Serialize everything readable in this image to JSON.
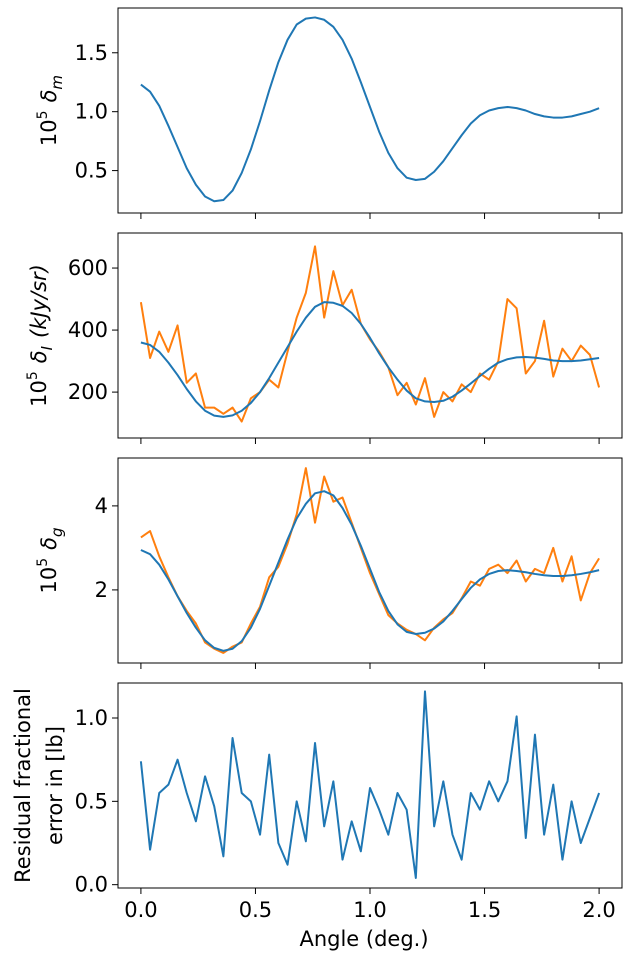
{
  "chart_data": [
    {
      "type": "line",
      "ylabel": [
        "10",
        "5",
        "δ",
        "m"
      ],
      "x": [
        0,
        0.04,
        0.08,
        0.12,
        0.16,
        0.2,
        0.24,
        0.28,
        0.32,
        0.36,
        0.4,
        0.44,
        0.48,
        0.52,
        0.56,
        0.6,
        0.64,
        0.68,
        0.72,
        0.76,
        0.8,
        0.84,
        0.88,
        0.92,
        0.96,
        1.0,
        1.04,
        1.08,
        1.12,
        1.16,
        1.2,
        1.24,
        1.28,
        1.32,
        1.36,
        1.4,
        1.44,
        1.48,
        1.52,
        1.56,
        1.6,
        1.64,
        1.68,
        1.72,
        1.76,
        1.8,
        1.84,
        1.88,
        1.92,
        1.96,
        2.0
      ],
      "series": [
        {
          "color": "#1f77b4",
          "values": [
            1.23,
            1.17,
            1.05,
            0.88,
            0.7,
            0.52,
            0.38,
            0.28,
            0.24,
            0.25,
            0.33,
            0.48,
            0.68,
            0.92,
            1.18,
            1.42,
            1.61,
            1.74,
            1.79,
            1.8,
            1.78,
            1.72,
            1.61,
            1.45,
            1.25,
            1.04,
            0.83,
            0.65,
            0.52,
            0.44,
            0.42,
            0.43,
            0.49,
            0.58,
            0.69,
            0.8,
            0.9,
            0.97,
            1.01,
            1.03,
            1.04,
            1.03,
            1.01,
            0.98,
            0.96,
            0.95,
            0.95,
            0.96,
            0.98,
            1.0,
            1.03
          ]
        }
      ],
      "xlim": [
        -0.1,
        2.1
      ],
      "xticks": [
        0,
        0.5,
        1,
        1.5,
        2
      ],
      "ylim": [
        0.14,
        1.88
      ],
      "yticks": [
        0.5,
        {
          "value": 1,
          "label": "1.0"
        },
        1.5
      ]
    },
    {
      "type": "line",
      "ylabel": [
        "10",
        "5",
        "δ",
        "I",
        "(kJy/sr)"
      ],
      "x": [
        0,
        0.04,
        0.08,
        0.12,
        0.16,
        0.2,
        0.24,
        0.28,
        0.32,
        0.36,
        0.4,
        0.44,
        0.48,
        0.52,
        0.56,
        0.6,
        0.64,
        0.68,
        0.72,
        0.76,
        0.8,
        0.84,
        0.88,
        0.92,
        0.96,
        1.0,
        1.04,
        1.08,
        1.12,
        1.16,
        1.2,
        1.24,
        1.28,
        1.32,
        1.36,
        1.4,
        1.44,
        1.48,
        1.52,
        1.56,
        1.6,
        1.64,
        1.68,
        1.72,
        1.76,
        1.8,
        1.84,
        1.88,
        1.92,
        1.96,
        2.0
      ],
      "series": [
        {
          "color": "#ff7f0e",
          "values": [
            490,
            310,
            395,
            330,
            415,
            230,
            260,
            150,
            150,
            130,
            150,
            105,
            180,
            200,
            240,
            215,
            330,
            440,
            520,
            670,
            440,
            590,
            480,
            530,
            420,
            370,
            330,
            280,
            190,
            230,
            160,
            245,
            120,
            200,
            170,
            225,
            200,
            260,
            240,
            300,
            500,
            470,
            260,
            300,
            430,
            250,
            340,
            300,
            350,
            320,
            215
          ]
        },
        {
          "color": "#1f77b4",
          "values": [
            360,
            352,
            330,
            295,
            255,
            210,
            170,
            140,
            124,
            120,
            125,
            140,
            165,
            200,
            245,
            295,
            345,
            395,
            440,
            475,
            490,
            488,
            478,
            455,
            420,
            375,
            325,
            280,
            240,
            205,
            180,
            170,
            168,
            172,
            185,
            205,
            228,
            252,
            275,
            295,
            306,
            312,
            313,
            311,
            307,
            302,
            300,
            300,
            302,
            306,
            310
          ]
        }
      ],
      "xlim": [
        -0.1,
        2.1
      ],
      "xticks": [
        0,
        0.5,
        1,
        1.5,
        2
      ],
      "ylim": [
        52,
        713
      ],
      "yticks": [
        200,
        400,
        600
      ]
    },
    {
      "type": "line",
      "ylabel": [
        "10",
        "5",
        "δ",
        "g"
      ],
      "x": [
        0,
        0.04,
        0.08,
        0.12,
        0.16,
        0.2,
        0.24,
        0.28,
        0.32,
        0.36,
        0.4,
        0.44,
        0.48,
        0.52,
        0.56,
        0.6,
        0.64,
        0.68,
        0.72,
        0.76,
        0.8,
        0.84,
        0.88,
        0.92,
        0.96,
        1.0,
        1.04,
        1.08,
        1.12,
        1.16,
        1.2,
        1.24,
        1.28,
        1.32,
        1.36,
        1.4,
        1.44,
        1.48,
        1.52,
        1.56,
        1.6,
        1.64,
        1.68,
        1.72,
        1.76,
        1.8,
        1.84,
        1.88,
        1.92,
        1.96,
        2.0
      ],
      "series": [
        {
          "color": "#ff7f0e",
          "values": [
            3.25,
            3.4,
            2.8,
            2.3,
            1.85,
            1.5,
            1.2,
            0.75,
            0.6,
            0.5,
            0.65,
            0.75,
            1.2,
            1.6,
            2.3,
            2.55,
            3.1,
            3.8,
            4.9,
            3.6,
            4.7,
            4.1,
            4.2,
            3.6,
            3.0,
            2.4,
            1.9,
            1.4,
            1.2,
            1.05,
            0.95,
            0.8,
            1.1,
            1.3,
            1.45,
            1.8,
            2.2,
            2.1,
            2.5,
            2.6,
            2.4,
            2.7,
            2.2,
            2.5,
            2.4,
            3.0,
            2.2,
            2.8,
            1.75,
            2.4,
            2.75
          ]
        },
        {
          "color": "#1f77b4",
          "values": [
            2.95,
            2.85,
            2.6,
            2.25,
            1.85,
            1.45,
            1.1,
            0.8,
            0.62,
            0.55,
            0.6,
            0.78,
            1.1,
            1.55,
            2.1,
            2.65,
            3.2,
            3.7,
            4.05,
            4.3,
            4.35,
            4.25,
            3.95,
            3.55,
            3.05,
            2.5,
            1.95,
            1.5,
            1.18,
            1.0,
            0.95,
            0.98,
            1.08,
            1.25,
            1.5,
            1.78,
            2.05,
            2.25,
            2.38,
            2.45,
            2.47,
            2.45,
            2.42,
            2.38,
            2.35,
            2.33,
            2.33,
            2.35,
            2.38,
            2.42,
            2.47
          ]
        }
      ],
      "xlim": [
        -0.1,
        2.1
      ],
      "xticks": [
        0,
        0.5,
        1,
        1.5,
        2
      ],
      "ylim": [
        0.26,
        5.14
      ],
      "yticks": [
        2,
        4
      ]
    },
    {
      "type": "line",
      "ylabel_lines": [
        "Residual fractional",
        "error in [lb]"
      ],
      "xlabel": "Angle (deg.)",
      "x": [
        0,
        0.04,
        0.08,
        0.12,
        0.16,
        0.2,
        0.24,
        0.28,
        0.32,
        0.36,
        0.4,
        0.44,
        0.48,
        0.52,
        0.56,
        0.6,
        0.64,
        0.68,
        0.72,
        0.76,
        0.8,
        0.84,
        0.88,
        0.92,
        0.96,
        1.0,
        1.04,
        1.08,
        1.12,
        1.16,
        1.2,
        1.24,
        1.28,
        1.32,
        1.36,
        1.4,
        1.44,
        1.48,
        1.52,
        1.56,
        1.6,
        1.64,
        1.68,
        1.72,
        1.76,
        1.8,
        1.84,
        1.88,
        1.92,
        1.96,
        2.0
      ],
      "series": [
        {
          "color": "#1f77b4",
          "values": [
            0.74,
            0.21,
            0.55,
            0.6,
            0.75,
            0.55,
            0.38,
            0.65,
            0.47,
            0.17,
            0.88,
            0.55,
            0.5,
            0.3,
            0.78,
            0.25,
            0.12,
            0.5,
            0.26,
            0.85,
            0.35,
            0.62,
            0.15,
            0.38,
            0.2,
            0.58,
            0.45,
            0.3,
            0.55,
            0.45,
            0.04,
            1.16,
            0.35,
            0.62,
            0.3,
            0.15,
            0.55,
            0.45,
            0.62,
            0.5,
            0.62,
            1.01,
            0.28,
            0.9,
            0.3,
            0.6,
            0.15,
            0.5,
            0.25,
            0.4,
            0.55
          ]
        }
      ],
      "xlim": [
        -0.1,
        2.1
      ],
      "xticks": [
        {
          "value": 0,
          "label": "0.0"
        },
        0.5,
        {
          "value": 1,
          "label": "1.0"
        },
        1.5,
        {
          "value": 2,
          "label": "2.0"
        }
      ],
      "ylim": [
        -0.02,
        1.21
      ],
      "yticks": [
        {
          "value": 0,
          "label": "0.0"
        },
        0.5,
        {
          "value": 1,
          "label": "1.0"
        }
      ]
    }
  ]
}
